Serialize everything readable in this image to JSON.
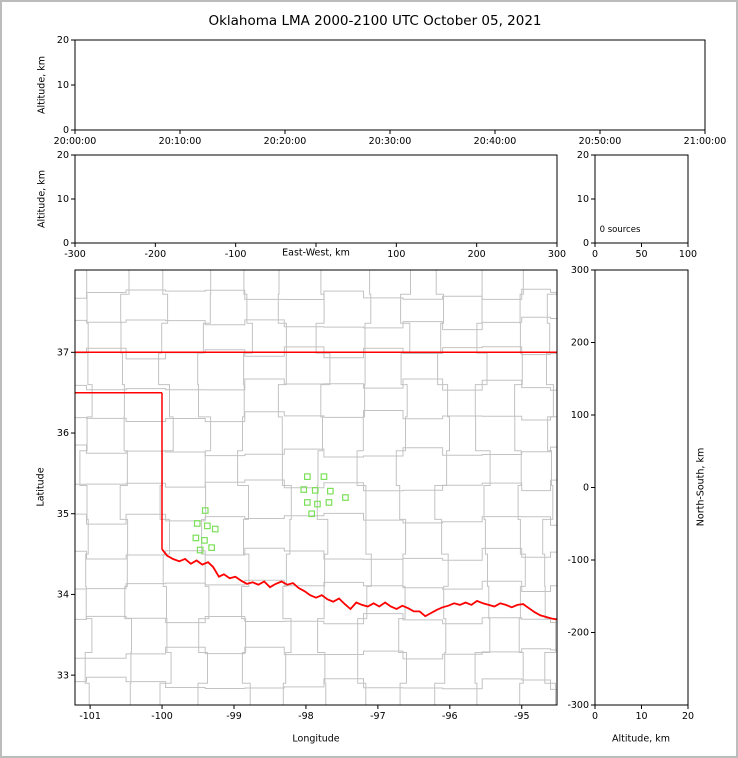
{
  "title": "Oklahoma LMA 2000-2100 UTC October 05, 2021",
  "chart_data": {
    "type": "scatter",
    "title": "Oklahoma LMA 2000-2100 UTC October 05, 2021",
    "subtitle": "",
    "legend": "none",
    "grid": false,
    "panels": [
      {
        "id": "time_altitude",
        "type": "scatter",
        "xlabel": "",
        "ylabel": "Altitude, km",
        "xtick_labels": [
          "20:00:00",
          "20:10:00",
          "20:20:00",
          "20:30:00",
          "20:40:00",
          "20:50:00",
          "21:00:00"
        ],
        "ylim": [
          0,
          20
        ],
        "yticks": [
          0,
          10,
          20
        ],
        "points": []
      },
      {
        "id": "eastwest_altitude",
        "type": "scatter",
        "xlabel": "East-West, km",
        "ylabel": "Altitude, km",
        "xlim": [
          -300,
          300
        ],
        "xticks": [
          -300,
          -200,
          -100,
          0,
          100,
          200,
          300
        ],
        "ylim": [
          0,
          20
        ],
        "yticks": [
          0,
          10,
          20
        ],
        "points": []
      },
      {
        "id": "source_histogram",
        "type": "line",
        "annotation": "0 sources",
        "xlim": [
          0,
          100
        ],
        "xticks": [
          0,
          50,
          100
        ],
        "ylim": [
          0,
          20
        ],
        "yticks": [
          0,
          10,
          20
        ],
        "points": []
      },
      {
        "id": "plan_view_map",
        "type": "scatter",
        "xlabel": "Longitude",
        "ylabel": "Latitude",
        "xlim": [
          -101.21,
          -94.51
        ],
        "xticks": [
          -101,
          -100,
          -99,
          -98,
          -97,
          -96,
          -95
        ],
        "ylim": [
          32.63,
          38.02
        ],
        "yticks": [
          33,
          34,
          35,
          36,
          37
        ],
        "county_lines": {
          "color": "#c3c3c3",
          "seed": 11,
          "jitter_lon": 0.22,
          "jitter_lat": 0.16,
          "verticals": [
            -101.05,
            -100.5,
            -99.95,
            -99.4,
            -98.85,
            -98.3,
            -97.75,
            -97.2,
            -96.65,
            -96.1,
            -95.55,
            -95.0,
            -94.6
          ],
          "horizontals": [
            37.72,
            37.36,
            36.99,
            36.6,
            36.2,
            35.78,
            35.35,
            34.93,
            34.5,
            34.1,
            33.7,
            33.28,
            32.9
          ]
        },
        "state_border": {
          "color": "#ff0000",
          "segments": [
            [
              [
                -101.21,
                37.0
              ],
              [
                -94.51,
                37.0
              ]
            ],
            [
              [
                -101.21,
                36.5
              ],
              [
                -100.0,
                36.5
              ]
            ],
            [
              [
                -100.0,
                36.5
              ],
              [
                -100.0,
                34.56
              ]
            ],
            [
              [
                -100.0,
                34.56
              ],
              [
                -99.93,
                34.48
              ],
              [
                -99.85,
                34.44
              ],
              [
                -99.76,
                34.41
              ],
              [
                -99.68,
                34.44
              ],
              [
                -99.6,
                34.38
              ],
              [
                -99.52,
                34.42
              ],
              [
                -99.44,
                34.37
              ],
              [
                -99.36,
                34.4
              ],
              [
                -99.29,
                34.34
              ],
              [
                -99.21,
                34.22
              ],
              [
                -99.14,
                34.25
              ],
              [
                -99.06,
                34.2
              ],
              [
                -98.98,
                34.22
              ],
              [
                -98.9,
                34.17
              ],
              [
                -98.82,
                34.13
              ],
              [
                -98.74,
                34.15
              ],
              [
                -98.66,
                34.12
              ],
              [
                -98.58,
                34.16
              ],
              [
                -98.5,
                34.09
              ],
              [
                -98.42,
                34.13
              ],
              [
                -98.34,
                34.16
              ],
              [
                -98.26,
                34.12
              ],
              [
                -98.18,
                34.14
              ],
              [
                -98.1,
                34.08
              ],
              [
                -98.02,
                34.04
              ],
              [
                -97.94,
                33.99
              ],
              [
                -97.86,
                33.96
              ],
              [
                -97.78,
                33.99
              ],
              [
                -97.7,
                33.94
              ],
              [
                -97.62,
                33.91
              ],
              [
                -97.54,
                33.95
              ],
              [
                -97.46,
                33.88
              ],
              [
                -97.38,
                33.82
              ],
              [
                -97.3,
                33.9
              ],
              [
                -97.22,
                33.87
              ],
              [
                -97.14,
                33.85
              ],
              [
                -97.06,
                33.89
              ],
              [
                -96.98,
                33.85
              ],
              [
                -96.9,
                33.9
              ],
              [
                -96.82,
                33.85
              ],
              [
                -96.74,
                33.82
              ],
              [
                -96.66,
                33.86
              ],
              [
                -96.58,
                33.83
              ],
              [
                -96.5,
                33.79
              ],
              [
                -96.42,
                33.79
              ],
              [
                -96.34,
                33.73
              ],
              [
                -96.26,
                33.77
              ],
              [
                -96.18,
                33.81
              ],
              [
                -96.1,
                33.84
              ],
              [
                -96.02,
                33.86
              ],
              [
                -95.94,
                33.89
              ],
              [
                -95.86,
                33.87
              ],
              [
                -95.78,
                33.9
              ],
              [
                -95.7,
                33.87
              ],
              [
                -95.62,
                33.92
              ],
              [
                -95.54,
                33.89
              ],
              [
                -95.46,
                33.87
              ],
              [
                -95.38,
                33.85
              ],
              [
                -95.3,
                33.89
              ],
              [
                -95.22,
                33.87
              ],
              [
                -95.14,
                33.84
              ],
              [
                -95.06,
                33.87
              ],
              [
                -94.98,
                33.88
              ],
              [
                -94.9,
                33.83
              ],
              [
                -94.82,
                33.78
              ],
              [
                -94.74,
                33.74
              ],
              [
                -94.66,
                33.72
              ],
              [
                -94.58,
                33.7
              ],
              [
                -94.5,
                33.69
              ]
            ]
          ]
        },
        "stations": {
          "marker": "open-square",
          "color": "#7ce05a",
          "size": 5.5,
          "locations": [
            [
              -97.98,
              35.46
            ],
            [
              -97.75,
              35.46
            ],
            [
              -98.03,
              35.3
            ],
            [
              -97.87,
              35.29
            ],
            [
              -97.66,
              35.28
            ],
            [
              -97.45,
              35.2
            ],
            [
              -97.98,
              35.14
            ],
            [
              -97.84,
              35.12
            ],
            [
              -97.68,
              35.14
            ],
            [
              -97.92,
              35.0
            ],
            [
              -99.4,
              35.04
            ],
            [
              -99.51,
              34.88
            ],
            [
              -99.37,
              34.85
            ],
            [
              -99.26,
              34.81
            ],
            [
              -99.53,
              34.7
            ],
            [
              -99.41,
              34.67
            ],
            [
              -99.31,
              34.58
            ],
            [
              -99.47,
              34.55
            ]
          ]
        }
      },
      {
        "id": "northsouth_altitude",
        "type": "scatter",
        "xlabel": "Altitude, km",
        "ylabel": "North-South, km",
        "xlim": [
          0,
          20
        ],
        "xticks": [
          0,
          10,
          20
        ],
        "ylim": [
          -300,
          300
        ],
        "yticks": [
          -300,
          -200,
          -100,
          0,
          100,
          200,
          300
        ],
        "points": []
      }
    ]
  }
}
